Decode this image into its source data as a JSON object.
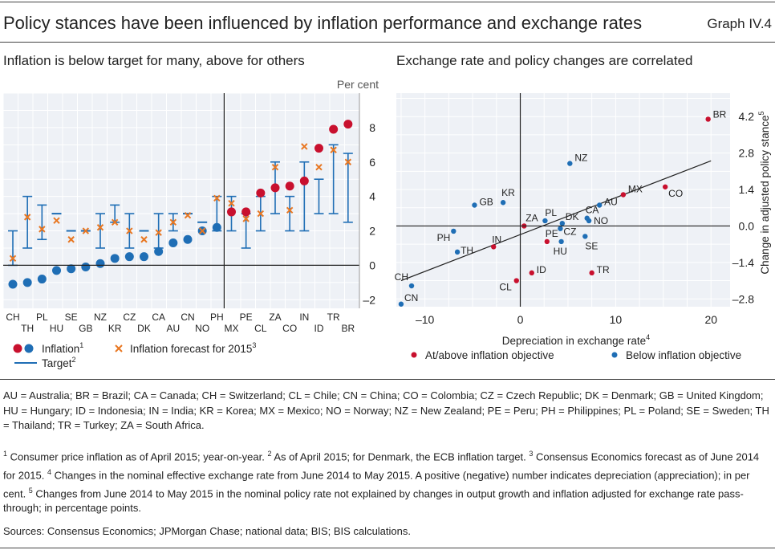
{
  "header": {
    "title": "Policy stances have been influenced by inflation performance and exchange rates",
    "graph_label": "Graph IV.4"
  },
  "left_panel": {
    "title": "Inflation is below target for many, above for others",
    "unit": "Per cent",
    "legend": {
      "inflation": "Inflation",
      "inflation_note": "1",
      "forecast": "Inflation forecast for 2015",
      "forecast_note": "3",
      "target": "Target",
      "target_note": "2"
    }
  },
  "right_panel": {
    "title": "Exchange rate and policy changes are correlated",
    "xlabel": "Depreciation in exchange rate",
    "xlabel_note": "4",
    "ylabel": "Change in adjusted policy stance",
    "ylabel_note": "5",
    "legend": {
      "above": "At/above inflation objective",
      "below": "Below inflation objective"
    }
  },
  "colors": {
    "red": "#c8102e",
    "blue": "#1f6eb5",
    "orange": "#e87722",
    "target": "#1f6eb5",
    "panel_bg": "#eef1f6",
    "grid": "#ffffff"
  },
  "chart_data": [
    {
      "type": "bar",
      "description_type": "range-target-with-points",
      "categories": [
        "CH",
        "TH",
        "PL",
        "HU",
        "SE",
        "GB",
        "NZ",
        "KR",
        "CZ",
        "DK",
        "CA",
        "AU",
        "CN",
        "NO",
        "PH",
        "MX",
        "PE",
        "CL",
        "ZA",
        "CO",
        "IN",
        "ID",
        "TR",
        "BR"
      ],
      "tick_rows": {
        "upper": [
          "CH",
          "PL",
          "SE",
          "NZ",
          "CZ",
          "CA",
          "CN",
          "PH",
          "PE",
          "ZA",
          "IN",
          "TR"
        ],
        "lower": [
          "TH",
          "HU",
          "GB",
          "KR",
          "DK",
          "AU",
          "NO",
          "MX",
          "CL",
          "CO",
          "ID",
          "BR"
        ]
      },
      "ylim": [
        -2.5,
        10
      ],
      "yticks": [
        -2,
        0,
        2,
        4,
        6,
        8
      ],
      "ylabel": "Per cent",
      "series": [
        {
          "name": "Inflation",
          "kind": "dot",
          "values": [
            -1.1,
            -1.0,
            -0.8,
            -0.3,
            -0.2,
            -0.1,
            0.1,
            0.4,
            0.5,
            0.5,
            0.8,
            1.3,
            1.5,
            2.0,
            2.2,
            3.1,
            3.1,
            4.2,
            4.5,
            4.6,
            4.9,
            6.8,
            7.9,
            8.2
          ],
          "above_target": [
            false,
            false,
            false,
            false,
            false,
            false,
            false,
            false,
            false,
            false,
            false,
            false,
            false,
            false,
            false,
            true,
            true,
            true,
            true,
            true,
            true,
            true,
            true,
            true
          ]
        },
        {
          "name": "Inflation forecast for 2015",
          "kind": "cross",
          "values": [
            0.4,
            2.8,
            2.1,
            2.6,
            1.5,
            2.0,
            2.2,
            2.5,
            2.0,
            1.5,
            1.9,
            2.5,
            2.9,
            2.0,
            3.9,
            3.6,
            2.7,
            3.0,
            5.7,
            3.2,
            6.9,
            5.7,
            6.7,
            6.0
          ]
        },
        {
          "name": "Target",
          "kind": "range",
          "low": [
            0,
            1,
            1.5,
            3,
            2,
            2,
            1,
            2.5,
            1,
            2,
            1,
            2,
            3,
            2.5,
            2,
            2,
            1,
            2,
            3,
            2,
            2,
            3,
            3,
            2.5
          ],
          "high": [
            2,
            4,
            3.5,
            3,
            2,
            2,
            3,
            3.5,
            3,
            2,
            3,
            3,
            3,
            2.5,
            4,
            4,
            3,
            4,
            6,
            4,
            6,
            5,
            7,
            6.5
          ],
          "point": [
            null,
            null,
            null,
            3,
            2,
            2,
            null,
            null,
            null,
            2,
            null,
            null,
            3,
            2.5,
            null,
            null,
            null,
            null,
            null,
            null,
            null,
            null,
            null,
            null
          ]
        }
      ],
      "grid": true,
      "reference_line_x_after": "PH"
    },
    {
      "type": "scatter",
      "xlabel": "Depreciation in exchange rate",
      "ylabel": "Change in adjusted policy stance",
      "xlim": [
        -13,
        22
      ],
      "ylim": [
        -3.1,
        5.1
      ],
      "xticks": [
        -10,
        0,
        10,
        20
      ],
      "yticks": [
        -2.8,
        -1.4,
        0.0,
        1.4,
        2.8,
        4.2
      ],
      "ytick_labels": [
        "–2.8",
        "–1.4",
        "0.0",
        "1.4",
        "2.8",
        "4.2"
      ],
      "xtick_labels": [
        "–10",
        "0",
        "10",
        "20"
      ],
      "grid": true,
      "points": [
        {
          "label": "BR",
          "x": 19.7,
          "y": 4.1,
          "group": "above"
        },
        {
          "label": "CO",
          "x": 15.2,
          "y": 1.5,
          "group": "above"
        },
        {
          "label": "MX",
          "x": 10.8,
          "y": 1.2,
          "group": "above"
        },
        {
          "label": "ZA",
          "x": 0.4,
          "y": 0.0,
          "group": "above"
        },
        {
          "label": "PE",
          "x": 2.8,
          "y": -0.6,
          "group": "above"
        },
        {
          "label": "IN",
          "x": -2.8,
          "y": -0.8,
          "group": "above"
        },
        {
          "label": "ID",
          "x": 1.2,
          "y": -1.8,
          "group": "above"
        },
        {
          "label": "CL",
          "x": -0.4,
          "y": -2.1,
          "group": "above"
        },
        {
          "label": "TR",
          "x": 7.5,
          "y": -1.8,
          "group": "above"
        },
        {
          "label": "NZ",
          "x": 5.2,
          "y": 2.4,
          "group": "below"
        },
        {
          "label": "KR",
          "x": -1.8,
          "y": 0.9,
          "group": "below"
        },
        {
          "label": "GB",
          "x": -4.8,
          "y": 0.8,
          "group": "below"
        },
        {
          "label": "PL",
          "x": 2.6,
          "y": 0.2,
          "group": "below"
        },
        {
          "label": "DK",
          "x": 4.4,
          "y": 0.1,
          "group": "below"
        },
        {
          "label": "CZ",
          "x": 4.2,
          "y": -0.1,
          "group": "below"
        },
        {
          "label": "CA",
          "x": 7.0,
          "y": 0.3,
          "group": "below"
        },
        {
          "label": "AU",
          "x": 8.3,
          "y": 0.8,
          "group": "below"
        },
        {
          "label": "NO",
          "x": 7.2,
          "y": 0.2,
          "group": "below"
        },
        {
          "label": "SE",
          "x": 6.8,
          "y": -0.4,
          "group": "below"
        },
        {
          "label": "HU",
          "x": 4.3,
          "y": -0.6,
          "group": "below"
        },
        {
          "label": "PH",
          "x": -7.0,
          "y": -0.2,
          "group": "below"
        },
        {
          "label": "TH",
          "x": -6.6,
          "y": -1.0,
          "group": "below"
        },
        {
          "label": "CH",
          "x": -11.4,
          "y": -2.3,
          "group": "below"
        },
        {
          "label": "CN",
          "x": -12.5,
          "y": -3.0,
          "group": "below"
        }
      ],
      "trend_line": {
        "x": [
          -12.5,
          20
        ],
        "y": [
          -2.1,
          2.5
        ]
      }
    }
  ],
  "abbreviations": "AU = Australia; BR = Brazil; CA = Canada; CH = Switzerland; CL = Chile; CN = China; CO = Colombia; CZ = Czech Republic; DK = Denmark; GB = United Kingdom; HU = Hungary; ID = Indonesia; IN = India; KR = Korea; MX = Mexico; NO = Norway; NZ = New Zealand; PE = Peru; PH = Philippines; PL = Poland; SE = Sweden; TH = Thailand; TR = Turkey; ZA = South Africa.",
  "notes": [
    {
      "num": "1",
      "text": "Consumer price inflation as of April 2015; year-on-year."
    },
    {
      "num": "2",
      "text": "As of April 2015; for Denmark, the ECB inflation target."
    },
    {
      "num": "3",
      "text": "Consensus Economics forecast as of June 2014 for 2015."
    },
    {
      "num": "4",
      "text": "Changes in the nominal effective exchange rate from June 2014 to May 2015. A positive (negative) number indicates depreciation (appreciation); in per cent."
    },
    {
      "num": "5",
      "text": "Changes from June 2014 to May 2015 in the nominal policy rate not explained by changes in output growth and inflation adjusted for exchange rate pass-through; in percentage points."
    }
  ],
  "sources": "Sources: Consensus Economics; JPMorgan Chase; national data; BIS; BIS calculations."
}
